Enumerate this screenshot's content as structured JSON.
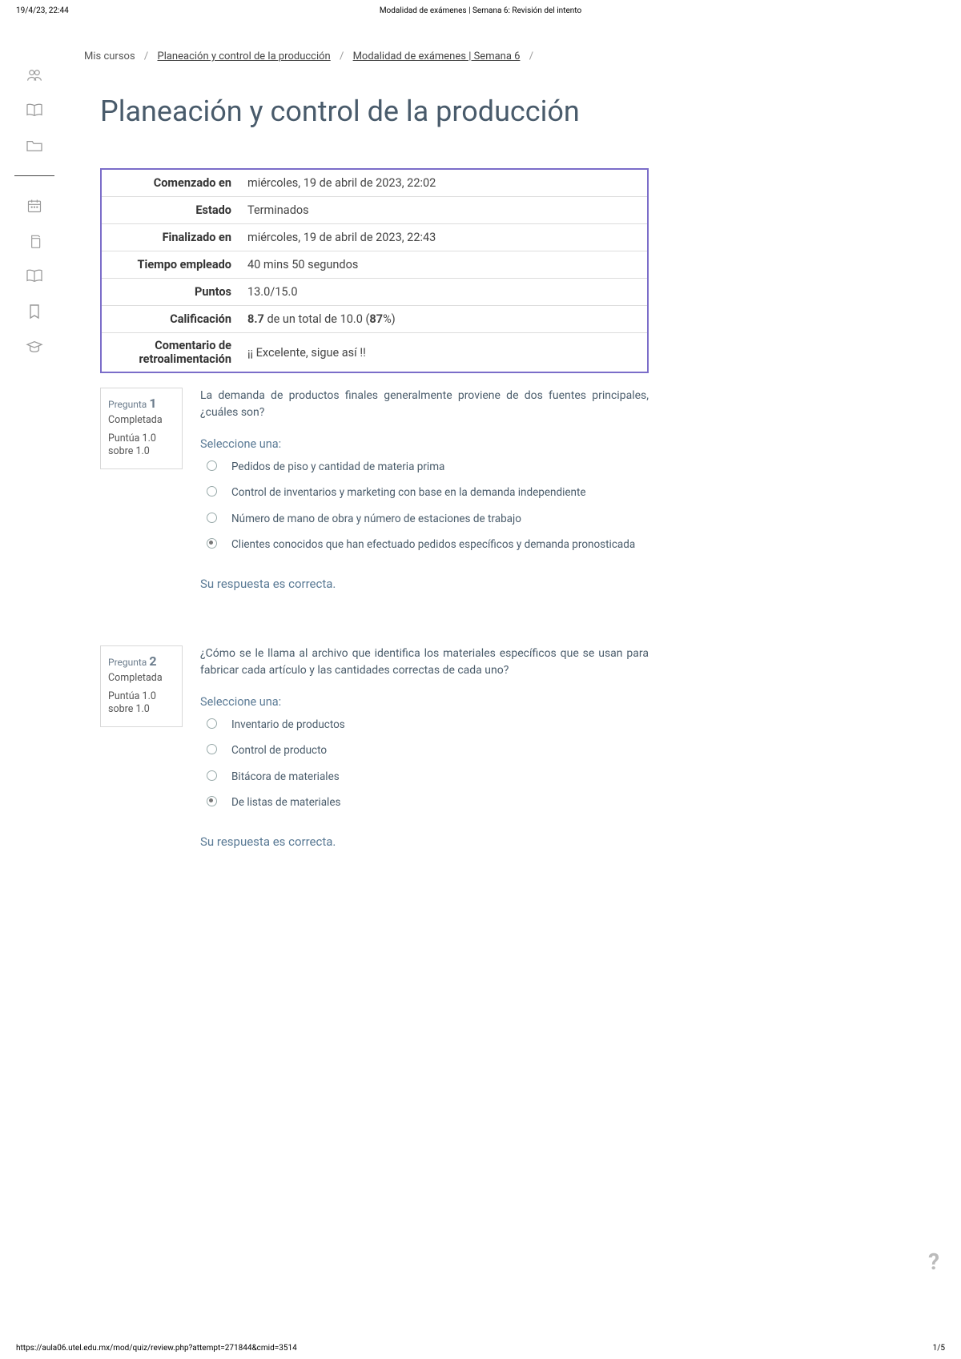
{
  "header": {
    "timestamp": "19/4/23, 22:44",
    "page_title": "Modalidad de exámenes | Semana 6: Revisión del intento"
  },
  "breadcrumb": {
    "root": "Mis cursos",
    "course": "Planeación y control de la producción",
    "activity": "Modalidad de exámenes | Semana 6"
  },
  "course_title": "Planeación y control de la producción",
  "summary": {
    "rows": [
      {
        "label": "Comenzado en",
        "value": "miércoles, 19 de abril de 2023, 22:02"
      },
      {
        "label": "Estado",
        "value": "Terminados"
      },
      {
        "label": "Finalizado en",
        "value": "miércoles, 19 de abril de 2023, 22:43"
      },
      {
        "label": "Tiempo empleado",
        "value": "40 mins 50 segundos"
      },
      {
        "label": "Puntos",
        "value": "13.0/15.0"
      },
      {
        "label": "Calificación",
        "value_html": "<b>8.7</b> de un total de 10.0 (<b>87</b>%)"
      },
      {
        "label": "Comentario de retroalimentación",
        "value": "¡¡ Excelente, sigue así !!"
      }
    ]
  },
  "questions": [
    {
      "number": "1",
      "label": "Pregunta",
      "state": "Completada",
      "mark": "Puntúa 1.0 sobre 1.0",
      "text": "La demanda de productos finales generalmente proviene de dos fuentes principales, ¿cuáles son?",
      "select_one": "Seleccione una:",
      "options": [
        {
          "text": "Pedidos de piso  y cantidad de materia prima",
          "selected": false
        },
        {
          "text": "Control de inventarios y marketing con base en la demanda independiente",
          "selected": false
        },
        {
          "text": "Número de mano de obra y número de estaciones de trabajo",
          "selected": false
        },
        {
          "text": "Clientes conocidos que han efectuado pedidos específicos y demanda pronosticada",
          "selected": true
        }
      ],
      "feedback": "Su respuesta es correcta."
    },
    {
      "number": "2",
      "label": "Pregunta",
      "state": "Completada",
      "mark": "Puntúa 1.0 sobre 1.0",
      "text": "¿Cómo se le llama al archivo que identifica los materiales específicos que se usan para fabricar cada artículo y las cantidades correctas de cada uno?",
      "select_one": "Seleccione una:",
      "options": [
        {
          "text": "Inventario de productos",
          "selected": false
        },
        {
          "text": "Control de producto",
          "selected": false
        },
        {
          "text": "Bitácora de materiales",
          "selected": false
        },
        {
          "text": "De listas de materiales",
          "selected": true
        }
      ],
      "feedback": "Su respuesta es correcta."
    }
  ],
  "footer": {
    "url": "https://aula06.utel.edu.mx/mod/quiz/review.php?attempt=271844&cmid=3514",
    "page": "1/5"
  },
  "help_glyph": "?",
  "colors": {
    "accent_border": "#7b6dc9",
    "title": "#495b6b",
    "link": "#5a7a95"
  }
}
